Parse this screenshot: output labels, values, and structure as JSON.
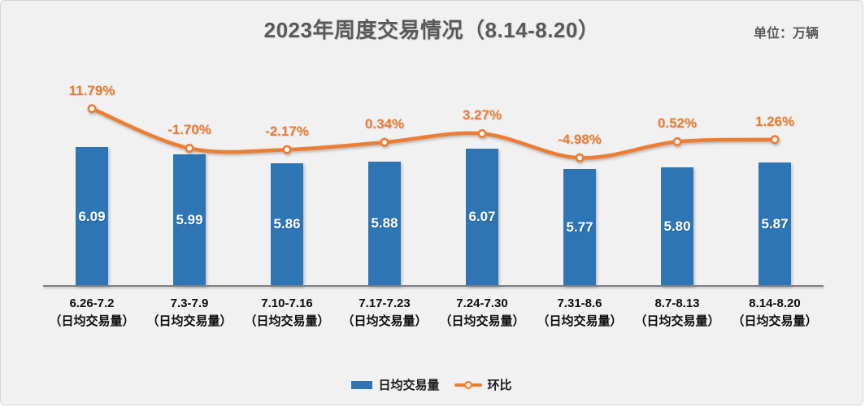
{
  "chart_data": {
    "type": "bar",
    "combo": "bar+line",
    "title": "2023年周度交易情况（8.14-8.20）",
    "unit_label": "单位：万辆",
    "categories": [
      "6.26-7.2",
      "7.3-7.9",
      "7.10-7.16",
      "7.17-7.23",
      "7.24-7.30",
      "7.31-8.6",
      "8.7-8.13",
      "8.14-8.20"
    ],
    "category_sublabel": "（日均交易量）",
    "series": [
      {
        "name": "日均交易量",
        "type": "bar",
        "values": [
          6.09,
          5.99,
          5.86,
          5.88,
          6.07,
          5.77,
          5.8,
          5.87
        ],
        "labels": [
          "6.09",
          "5.99",
          "5.86",
          "5.88",
          "6.07",
          "5.77",
          "5.80",
          "5.87"
        ],
        "color": "#2e75b6",
        "label_position": "inside-center"
      },
      {
        "name": "环比",
        "type": "line",
        "values": [
          11.79,
          -1.7,
          -2.17,
          0.34,
          3.27,
          -4.98,
          0.52,
          1.26
        ],
        "labels": [
          "11.79%",
          "-1.70%",
          "-2.17%",
          "0.34%",
          "3.27%",
          "-4.98%",
          "0.52%",
          "1.26%"
        ],
        "color": "#ed7d31",
        "marker": "circle-white-fill",
        "smooth": true,
        "label_position": "above"
      }
    ],
    "xlabel": "",
    "ylabel": "",
    "y_axis_visible": false,
    "grid": false,
    "data_labels": true,
    "legend_position": "bottom",
    "background_color": "#f1f1f2"
  }
}
